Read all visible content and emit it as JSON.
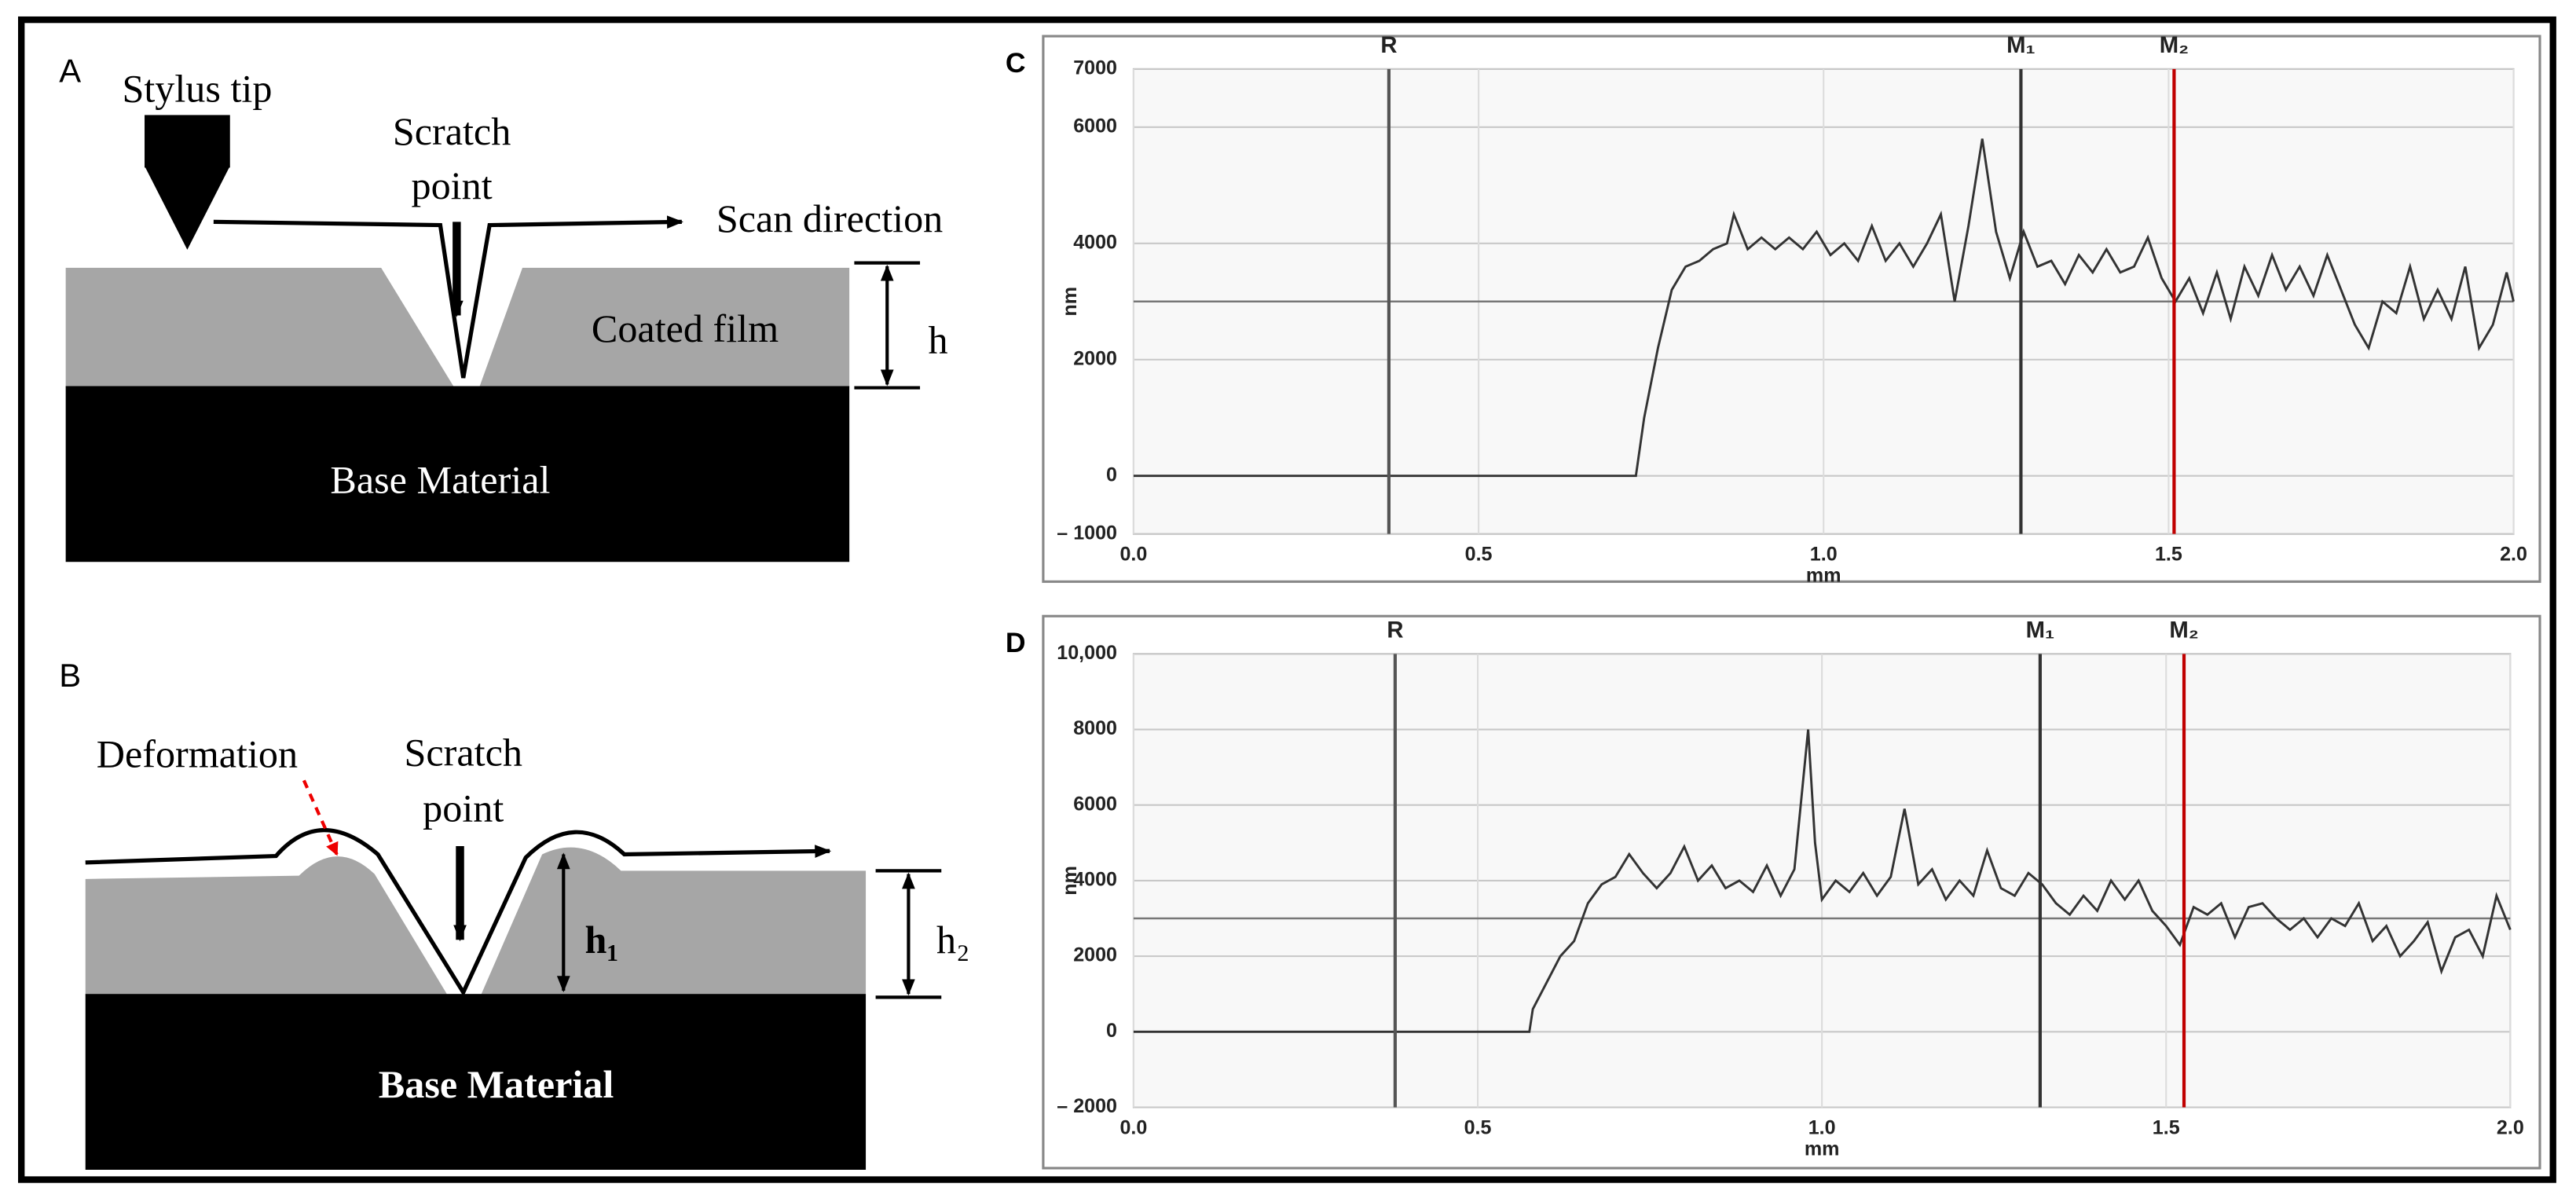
{
  "diagrams": {
    "A": {
      "panel_label": "A",
      "stylus": "Stylus tip",
      "scratch_point": [
        "Scratch",
        "point"
      ],
      "scan": "Scan direction",
      "film": "Coated film",
      "base": "Base Material",
      "height": "h"
    },
    "B": {
      "panel_label": "B",
      "deformation": "Deformation",
      "scratch_point": [
        "Scratch",
        "point"
      ],
      "base": "Base Material",
      "h1": "h₁",
      "h2": "h₂"
    }
  },
  "chart_data": [
    {
      "type": "line",
      "panel_label": "C",
      "x_label": "mm",
      "y_label": "nm",
      "grid": true,
      "xlim": [
        0,
        2
      ],
      "ylim": [
        -1000,
        7000
      ],
      "xticks": [
        {
          "value": 0,
          "label": "0.0"
        },
        0.5,
        {
          "value": 1,
          "label": "1.0"
        },
        1.5,
        {
          "value": 2,
          "label": "2.0"
        }
      ],
      "yticks": [
        7000,
        6000,
        4000,
        2000,
        0,
        {
          "value": -1000,
          "label": "– 1000"
        }
      ],
      "reference_level": 3000,
      "markers": [
        {
          "label": "R",
          "x": 0.37,
          "color": "#555555"
        },
        {
          "label": "M₁",
          "x": 1.286,
          "color": "#333333"
        },
        {
          "label": "M₂",
          "x": 1.508,
          "color": "#c00000"
        }
      ],
      "x": [
        0,
        0.728,
        0.74,
        0.76,
        0.78,
        0.8,
        0.82,
        0.84,
        0.86,
        0.87,
        0.89,
        0.91,
        0.93,
        0.95,
        0.97,
        0.99,
        1.01,
        1.03,
        1.05,
        1.07,
        1.09,
        1.11,
        1.13,
        1.15,
        1.17,
        1.19,
        1.21,
        1.23,
        1.25,
        1.27,
        1.29,
        1.31,
        1.33,
        1.35,
        1.37,
        1.39,
        1.41,
        1.43,
        1.45,
        1.47,
        1.49,
        1.51,
        1.53,
        1.55,
        1.57,
        1.59,
        1.61,
        1.63,
        1.65,
        1.67,
        1.69,
        1.71,
        1.73,
        1.75,
        1.77,
        1.79,
        1.81,
        1.83,
        1.85,
        1.87,
        1.89,
        1.91,
        1.93,
        1.95,
        1.97,
        1.99,
        2.0
      ],
      "series": [
        {
          "color": "#333333",
          "values": [
            0,
            0,
            1000,
            2200,
            3200,
            3600,
            3700,
            3900,
            4000,
            4500,
            3900,
            4100,
            3900,
            4100,
            3900,
            4200,
            3800,
            4000,
            3700,
            4300,
            3700,
            4000,
            3600,
            4000,
            4500,
            3000,
            4300,
            5800,
            4200,
            3400,
            4200,
            3600,
            3700,
            3300,
            3800,
            3500,
            3900,
            3500,
            3600,
            4100,
            3400,
            3000,
            3400,
            2800,
            3500,
            2700,
            3600,
            3100,
            3800,
            3200,
            3600,
            3100,
            3800,
            3200,
            2600,
            2200,
            3000,
            2800,
            3600,
            2700,
            3200,
            2700,
            3600,
            2200,
            2600,
            3500,
            3000
          ]
        }
      ]
    },
    {
      "type": "line",
      "panel_label": "D",
      "x_label": "mm",
      "y_label": "nm",
      "grid": true,
      "xlim": [
        0,
        2
      ],
      "ylim": [
        -2000,
        10000
      ],
      "xticks": [
        {
          "value": 0,
          "label": "0.0"
        },
        0.5,
        {
          "value": 1,
          "label": "1.0"
        },
        1.5,
        {
          "value": 2,
          "label": "2.0"
        }
      ],
      "yticks": [
        {
          "value": 10000,
          "label": "10,000"
        },
        8000,
        6000,
        4000,
        2000,
        0,
        {
          "value": -2000,
          "label": "– 2000"
        }
      ],
      "reference_level": 3000,
      "markers": [
        {
          "label": "R",
          "x": 0.38,
          "color": "#555555"
        },
        {
          "label": "M₁",
          "x": 1.317,
          "color": "#333333"
        },
        {
          "label": "M₂",
          "x": 1.526,
          "color": "#c00000"
        }
      ],
      "x": [
        0,
        0.575,
        0.58,
        0.6,
        0.62,
        0.64,
        0.66,
        0.68,
        0.7,
        0.72,
        0.74,
        0.76,
        0.78,
        0.8,
        0.82,
        0.84,
        0.86,
        0.88,
        0.9,
        0.92,
        0.94,
        0.96,
        0.98,
        0.99,
        1.0,
        1.02,
        1.04,
        1.06,
        1.08,
        1.1,
        1.12,
        1.14,
        1.16,
        1.18,
        1.2,
        1.22,
        1.24,
        1.26,
        1.28,
        1.3,
        1.32,
        1.34,
        1.36,
        1.38,
        1.4,
        1.42,
        1.44,
        1.46,
        1.48,
        1.5,
        1.52,
        1.54,
        1.56,
        1.58,
        1.6,
        1.62,
        1.64,
        1.66,
        1.68,
        1.7,
        1.72,
        1.74,
        1.76,
        1.78,
        1.8,
        1.82,
        1.84,
        1.86,
        1.88,
        1.9,
        1.92,
        1.94,
        1.96,
        1.98,
        2.0
      ],
      "series": [
        {
          "color": "#333333",
          "values": [
            0,
            0,
            600,
            1300,
            2000,
            2400,
            3400,
            3900,
            4100,
            4700,
            4200,
            3800,
            4200,
            4900,
            4000,
            4400,
            3800,
            4000,
            3700,
            4400,
            3600,
            4300,
            8000,
            5000,
            3500,
            4000,
            3700,
            4200,
            3600,
            4100,
            5900,
            3900,
            4300,
            3500,
            4000,
            3600,
            4800,
            3800,
            3600,
            4200,
            3900,
            3400,
            3100,
            3600,
            3200,
            4000,
            3500,
            4000,
            3200,
            2800,
            2300,
            3300,
            3100,
            3400,
            2500,
            3300,
            3400,
            3000,
            2700,
            3000,
            2500,
            3000,
            2800,
            3400,
            2400,
            2800,
            2000,
            2400,
            2900,
            1600,
            2500,
            2700,
            2000,
            3600,
            2700
          ]
        }
      ]
    }
  ]
}
